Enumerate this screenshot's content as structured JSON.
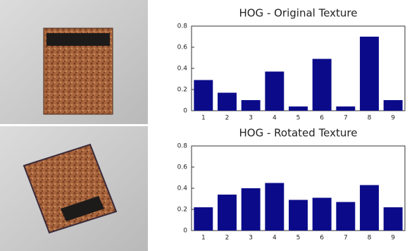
{
  "chart_data": [
    {
      "type": "bar",
      "title": "HOG - Original Texture",
      "categories": [
        "1",
        "2",
        "3",
        "4",
        "5",
        "6",
        "7",
        "8",
        "9"
      ],
      "values": [
        0.29,
        0.17,
        0.1,
        0.37,
        0.04,
        0.49,
        0.04,
        0.7,
        0.1
      ],
      "color": "#0b0b8a",
      "ylim": [
        0,
        0.8
      ],
      "yticks": [
        0,
        0.2,
        0.4,
        0.6,
        0.8
      ]
    },
    {
      "type": "bar",
      "title": "HOG - Rotated Texture",
      "categories": [
        "1",
        "2",
        "3",
        "4",
        "5",
        "6",
        "7",
        "8",
        "9"
      ],
      "values": [
        0.22,
        0.34,
        0.4,
        0.45,
        0.29,
        0.31,
        0.27,
        0.43,
        0.22
      ],
      "color": "#0b0b8a",
      "ylim": [
        0,
        0.8
      ],
      "yticks": [
        0,
        0.2,
        0.4,
        0.6,
        0.8
      ]
    }
  ]
}
